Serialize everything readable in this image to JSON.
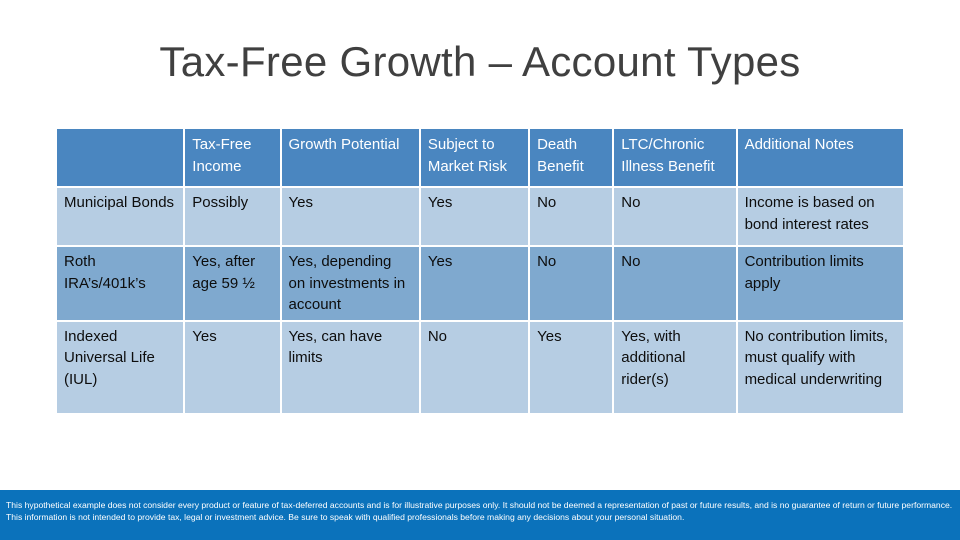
{
  "title": "Tax-Free Growth – Account Types",
  "table": {
    "headers": [
      "",
      "Tax-Free Income",
      "Growth Potential",
      "Subject to Market Risk",
      "Death Benefit",
      "LTC/Chronic Illness Benefit",
      "Additional Notes"
    ],
    "rows": [
      [
        "Municipal Bonds",
        "Possibly",
        "Yes",
        "Yes",
        "No",
        "No",
        "Income is based on bond interest rates"
      ],
      [
        "Roth IRA’s/401k’s",
        "Yes, after age 59 ½",
        "Yes, depending on investments in account",
        "Yes",
        "No",
        "No",
        "Contribution limits apply"
      ],
      [
        "Indexed Universal Life (IUL)",
        "Yes",
        "Yes, can have limits",
        "No",
        "Yes",
        "Yes, with additional rider(s)",
        "No contribution limits, must qualify with medical underwriting"
      ]
    ]
  },
  "colors": {
    "header_bg": "#4a86c0",
    "row_light": "#b6cde3",
    "row_dark": "#7fa9cf",
    "footer_bg": "#0b72bb",
    "title_text": "#404040"
  },
  "footer": {
    "disclaimer": "This hypothetical example does not consider every product or feature of tax-deferred accounts and is for illustrative purposes only. It should not be deemed a representation of past or future results, and is no guarantee of return or future performance. This information is not intended to provide tax, legal or investment advice. Be sure to speak with qualified professionals before making any decisions about your personal situation."
  }
}
